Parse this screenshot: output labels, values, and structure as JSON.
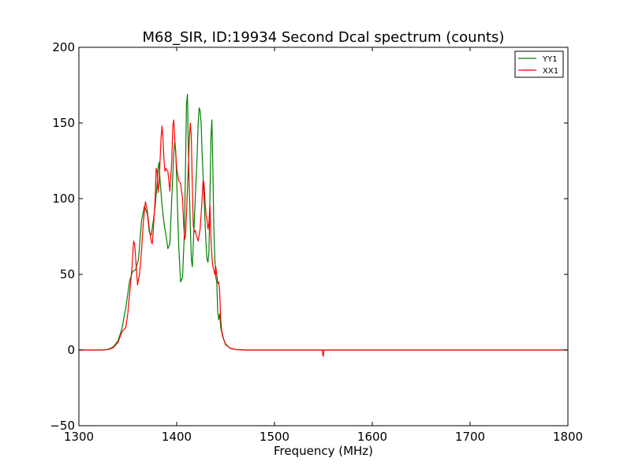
{
  "chart_data": {
    "type": "line",
    "title": "M68_SIR, ID:19934 Second Dcal spectrum (counts)",
    "xlabel": "Frequency (MHz)",
    "ylabel": "",
    "xlim": [
      1300,
      1800
    ],
    "ylim": [
      -50,
      200
    ],
    "x_ticks": [
      1300,
      1400,
      1500,
      1600,
      1700,
      1800
    ],
    "y_ticks": [
      -50,
      0,
      50,
      100,
      150,
      200
    ],
    "x_tick_labels": [
      "1300",
      "1400",
      "1500",
      "1600",
      "1700",
      "1800"
    ],
    "y_tick_labels": [
      "−50",
      "0",
      "50",
      "100",
      "150",
      "200"
    ],
    "grid": false,
    "legend_position": "top-right",
    "series": [
      {
        "name": "YY1",
        "color": "#008000",
        "points": [
          [
            1300,
            0
          ],
          [
            1325,
            0
          ],
          [
            1330,
            0.5
          ],
          [
            1335,
            2
          ],
          [
            1340,
            6
          ],
          [
            1344,
            14
          ],
          [
            1348,
            28
          ],
          [
            1352,
            46
          ],
          [
            1355,
            52
          ],
          [
            1358,
            53
          ],
          [
            1361,
            60
          ],
          [
            1364,
            85
          ],
          [
            1367,
            95
          ],
          [
            1370,
            90
          ],
          [
            1372,
            78
          ],
          [
            1374,
            76
          ],
          [
            1376,
            85
          ],
          [
            1378,
            95
          ],
          [
            1380,
            110
          ],
          [
            1381,
            120
          ],
          [
            1382,
            124
          ],
          [
            1383,
            112
          ],
          [
            1385,
            96
          ],
          [
            1387,
            84
          ],
          [
            1389,
            76
          ],
          [
            1391,
            67
          ],
          [
            1393,
            70
          ],
          [
            1395,
            100
          ],
          [
            1397,
            130
          ],
          [
            1398,
            137
          ],
          [
            1399,
            132
          ],
          [
            1400,
            112
          ],
          [
            1402,
            70
          ],
          [
            1404,
            45
          ],
          [
            1406,
            48
          ],
          [
            1408,
            80
          ],
          [
            1409,
            120
          ],
          [
            1410,
            162
          ],
          [
            1411,
            169
          ],
          [
            1412,
            130
          ],
          [
            1414,
            80
          ],
          [
            1415,
            60
          ],
          [
            1416,
            55
          ],
          [
            1417,
            70
          ],
          [
            1419,
            100
          ],
          [
            1421,
            130
          ],
          [
            1422,
            150
          ],
          [
            1423,
            160
          ],
          [
            1424,
            158
          ],
          [
            1425,
            150
          ],
          [
            1426,
            130
          ],
          [
            1428,
            100
          ],
          [
            1430,
            70
          ],
          [
            1431,
            60
          ],
          [
            1432,
            58
          ],
          [
            1433,
            65
          ],
          [
            1434,
            100
          ],
          [
            1435,
            140
          ],
          [
            1436,
            152
          ],
          [
            1437,
            120
          ],
          [
            1438,
            80
          ],
          [
            1439,
            60
          ],
          [
            1440,
            48
          ],
          [
            1441,
            45
          ],
          [
            1442,
            25
          ],
          [
            1443,
            20
          ],
          [
            1444,
            24
          ],
          [
            1445,
            15
          ],
          [
            1447,
            9
          ],
          [
            1450,
            4
          ],
          [
            1455,
            1
          ],
          [
            1460,
            0.3
          ],
          [
            1470,
            0
          ],
          [
            1500,
            0
          ],
          [
            1549,
            0
          ],
          [
            1550,
            0
          ],
          [
            1551,
            0
          ],
          [
            1600,
            0
          ],
          [
            1700,
            0
          ],
          [
            1800,
            0
          ]
        ]
      },
      {
        "name": "XX1",
        "color": "#ff0000",
        "points": [
          [
            1300,
            0
          ],
          [
            1325,
            0
          ],
          [
            1330,
            0.3
          ],
          [
            1335,
            1.5
          ],
          [
            1340,
            5
          ],
          [
            1344,
            12
          ],
          [
            1348,
            15
          ],
          [
            1350,
            24
          ],
          [
            1352,
            38
          ],
          [
            1354,
            52
          ],
          [
            1356,
            72
          ],
          [
            1357,
            70
          ],
          [
            1359,
            52
          ],
          [
            1360,
            43
          ],
          [
            1362,
            50
          ],
          [
            1364,
            65
          ],
          [
            1366,
            85
          ],
          [
            1368,
            98
          ],
          [
            1370,
            92
          ],
          [
            1372,
            80
          ],
          [
            1374,
            72
          ],
          [
            1375,
            70
          ],
          [
            1376,
            78
          ],
          [
            1378,
            100
          ],
          [
            1379,
            120
          ],
          [
            1380,
            118
          ],
          [
            1381,
            104
          ],
          [
            1382,
            110
          ],
          [
            1384,
            140
          ],
          [
            1385,
            148
          ],
          [
            1386,
            140
          ],
          [
            1387,
            126
          ],
          [
            1388,
            118
          ],
          [
            1389,
            120
          ],
          [
            1391,
            118
          ],
          [
            1393,
            105
          ],
          [
            1395,
            125
          ],
          [
            1396,
            148
          ],
          [
            1397,
            152
          ],
          [
            1398,
            140
          ],
          [
            1400,
            120
          ],
          [
            1402,
            112
          ],
          [
            1404,
            110
          ],
          [
            1406,
            100
          ],
          [
            1407,
            85
          ],
          [
            1408,
            73
          ],
          [
            1409,
            75
          ],
          [
            1411,
            105
          ],
          [
            1413,
            140
          ],
          [
            1414,
            150
          ],
          [
            1415,
            140
          ],
          [
            1416,
            108
          ],
          [
            1417,
            82
          ],
          [
            1418,
            78
          ],
          [
            1419,
            79
          ],
          [
            1420,
            76
          ],
          [
            1422,
            72
          ],
          [
            1424,
            80
          ],
          [
            1426,
            100
          ],
          [
            1427,
            112
          ],
          [
            1428,
            110
          ],
          [
            1429,
            98
          ],
          [
            1430,
            90
          ],
          [
            1431,
            86
          ],
          [
            1432,
            80
          ],
          [
            1433,
            84
          ],
          [
            1434,
            96
          ],
          [
            1435,
            75
          ],
          [
            1436,
            62
          ],
          [
            1437,
            55
          ],
          [
            1438,
            53
          ],
          [
            1439,
            50
          ],
          [
            1440,
            55
          ],
          [
            1441,
            50
          ],
          [
            1442,
            44
          ],
          [
            1443,
            45
          ],
          [
            1444,
            38
          ],
          [
            1445,
            20
          ],
          [
            1446,
            13
          ],
          [
            1448,
            7
          ],
          [
            1450,
            3.5
          ],
          [
            1455,
            1.2
          ],
          [
            1460,
            0.4
          ],
          [
            1470,
            0
          ],
          [
            1500,
            0
          ],
          [
            1549,
            0
          ],
          [
            1549.5,
            -4
          ],
          [
            1550,
            -4
          ],
          [
            1550.5,
            0
          ],
          [
            1600,
            0
          ],
          [
            1700,
            0
          ],
          [
            1800,
            0
          ]
        ]
      }
    ]
  }
}
